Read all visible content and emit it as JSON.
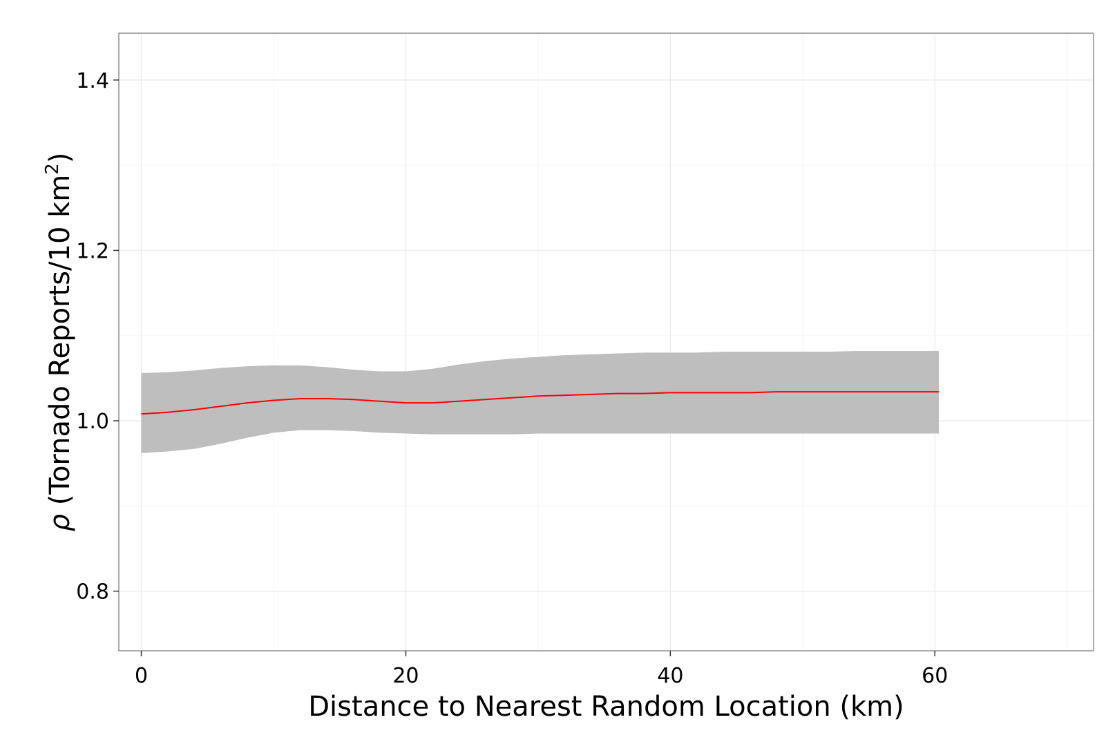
{
  "chart_data": {
    "type": "line",
    "title": "",
    "xlabel": "Distance to Nearest Random Location (km)",
    "ylabel": {
      "rho": "ρ",
      "text": " (Tornado Reports/10 km",
      "superscript": "2",
      "close": ")"
    },
    "xlim": [
      -1.7,
      72
    ],
    "ylim": [
      0.73,
      1.455
    ],
    "x_ticks": [
      0,
      20,
      40,
      60
    ],
    "x_tick_labels": [
      "0",
      "20",
      "40",
      "60"
    ],
    "y_ticks": [
      0.8,
      1.0,
      1.2,
      1.4
    ],
    "y_tick_labels": [
      "0.8",
      "1.0",
      "1.2",
      "1.4"
    ],
    "x_minor_ticks": [
      10,
      30,
      50,
      70
    ],
    "y_minor_ticks": [
      0.9,
      1.1,
      1.3
    ],
    "grid": true,
    "legend": "none",
    "series": [
      {
        "x": [
          0,
          2,
          4,
          6,
          8,
          10,
          12,
          14,
          16,
          18,
          20,
          22,
          24,
          26,
          28,
          30,
          32,
          34,
          36,
          38,
          40,
          42,
          44,
          46,
          48,
          50,
          52,
          54,
          56,
          58,
          60.3
        ],
        "y": [
          1.008,
          1.01,
          1.013,
          1.017,
          1.021,
          1.024,
          1.026,
          1.026,
          1.025,
          1.023,
          1.021,
          1.021,
          1.023,
          1.025,
          1.027,
          1.029,
          1.03,
          1.031,
          1.032,
          1.032,
          1.033,
          1.033,
          1.033,
          1.033,
          1.034,
          1.034,
          1.034,
          1.034,
          1.034,
          1.034,
          1.034
        ],
        "lower": [
          0.962,
          0.964,
          0.967,
          0.973,
          0.98,
          0.986,
          0.989,
          0.989,
          0.988,
          0.986,
          0.985,
          0.984,
          0.984,
          0.984,
          0.984,
          0.985,
          0.985,
          0.985,
          0.985,
          0.985,
          0.985,
          0.985,
          0.985,
          0.985,
          0.985,
          0.985,
          0.985,
          0.985,
          0.985,
          0.985,
          0.985
        ],
        "upper": [
          1.056,
          1.057,
          1.059,
          1.062,
          1.064,
          1.065,
          1.065,
          1.063,
          1.06,
          1.058,
          1.058,
          1.061,
          1.066,
          1.07,
          1.073,
          1.075,
          1.077,
          1.078,
          1.079,
          1.08,
          1.08,
          1.08,
          1.081,
          1.081,
          1.081,
          1.081,
          1.081,
          1.082,
          1.082,
          1.082,
          1.082
        ],
        "line_color": "#ff0000",
        "ribbon_color": "#bebebe"
      }
    ],
    "colors": {
      "panel_border": "#7f7f7f",
      "grid_major": "#ebebeb",
      "grid_minor": "#f5f5f5",
      "axis_tick": "#333333"
    }
  }
}
